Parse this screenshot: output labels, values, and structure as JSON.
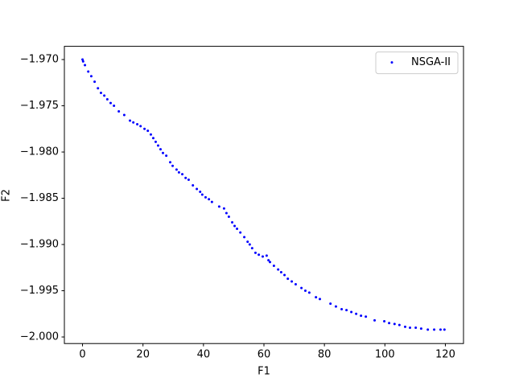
{
  "chart_data": {
    "type": "scatter",
    "xlabel": "F1",
    "ylabel": "F2",
    "x": [
      0,
      0.2,
      0.8,
      1.9,
      2.9,
      4.0,
      5.1,
      6.1,
      7.2,
      8.2,
      9.3,
      10.4,
      12.0,
      13.8,
      15.7,
      16.8,
      18.1,
      19.2,
      20.5,
      21.6,
      22.6,
      23.4,
      24.2,
      25.0,
      25.8,
      26.6,
      27.7,
      29.0,
      29.8,
      31.1,
      31.9,
      33.0,
      34.1,
      35.1,
      36.5,
      37.8,
      38.9,
      39.6,
      40.7,
      41.8,
      42.8,
      45.2,
      46.8,
      47.6,
      48.4,
      49.5,
      50.3,
      51.1,
      52.2,
      53.5,
      54.6,
      55.3,
      56.1,
      57.2,
      58.3,
      59.6,
      60.9,
      61.5,
      62.0,
      63.3,
      64.7,
      65.7,
      66.8,
      67.9,
      69.2,
      70.5,
      72.4,
      73.7,
      75.0,
      77.2,
      78.5,
      82.0,
      83.8,
      85.7,
      87.3,
      88.9,
      90.5,
      92.1,
      93.7,
      96.6,
      99.8,
      101.4,
      103.2,
      104.8,
      106.7,
      108.3,
      110.2,
      112.0,
      114.2,
      116.3,
      118.4,
      119.7
    ],
    "series": [
      {
        "name": "NSGA-II",
        "color": "#0000ff",
        "values": [
          -1.97,
          -1.9702,
          -1.9706,
          -1.9713,
          -1.9718,
          -1.9724,
          -1.9731,
          -1.9736,
          -1.9739,
          -1.9743,
          -1.9747,
          -1.975,
          -1.9756,
          -1.976,
          -1.9766,
          -1.9768,
          -1.977,
          -1.9772,
          -1.9775,
          -1.9777,
          -1.9781,
          -1.9785,
          -1.9789,
          -1.9793,
          -1.9797,
          -1.9801,
          -1.9804,
          -1.9811,
          -1.9815,
          -1.9819,
          -1.9822,
          -1.9824,
          -1.9828,
          -1.983,
          -1.9836,
          -1.984,
          -1.9843,
          -1.9846,
          -1.9849,
          -1.9851,
          -1.9854,
          -1.9859,
          -1.9861,
          -1.9866,
          -1.987,
          -1.9876,
          -1.988,
          -1.9883,
          -1.9887,
          -1.9892,
          -1.9897,
          -1.99,
          -1.9904,
          -1.9909,
          -1.9911,
          -1.9913,
          -1.9912,
          -1.9917,
          -1.9919,
          -1.9923,
          -1.9927,
          -1.993,
          -1.9933,
          -1.9937,
          -1.994,
          -1.9943,
          -1.9947,
          -1.995,
          -1.9952,
          -1.9957,
          -1.9959,
          -1.9964,
          -1.9967,
          -1.997,
          -1.9971,
          -1.9973,
          -1.9975,
          -1.9977,
          -1.9978,
          -1.9982,
          -1.9983,
          -1.9985,
          -1.9986,
          -1.9987,
          -1.9989,
          -1.999,
          -1.999,
          -1.9991,
          -1.9992,
          -1.9992,
          -1.9992,
          -1.9992
        ]
      }
    ],
    "xlim": [
      -6,
      126
    ],
    "xticks": [
      0,
      20,
      40,
      60,
      80,
      100,
      120
    ],
    "ylim": [
      -2.00071,
      -1.96857
    ],
    "yticks": [
      {
        "value": -2.0,
        "label": "−2.000"
      },
      {
        "value": -1.995,
        "label": "−1.995"
      },
      {
        "value": -1.99,
        "label": "−1.990"
      },
      {
        "value": -1.985,
        "label": "−1.985"
      },
      {
        "value": -1.98,
        "label": "−1.980"
      },
      {
        "value": -1.975,
        "label": "−1.975"
      },
      {
        "value": -1.97,
        "label": "−1.970"
      }
    ],
    "grid": false,
    "legend": "upper right"
  }
}
